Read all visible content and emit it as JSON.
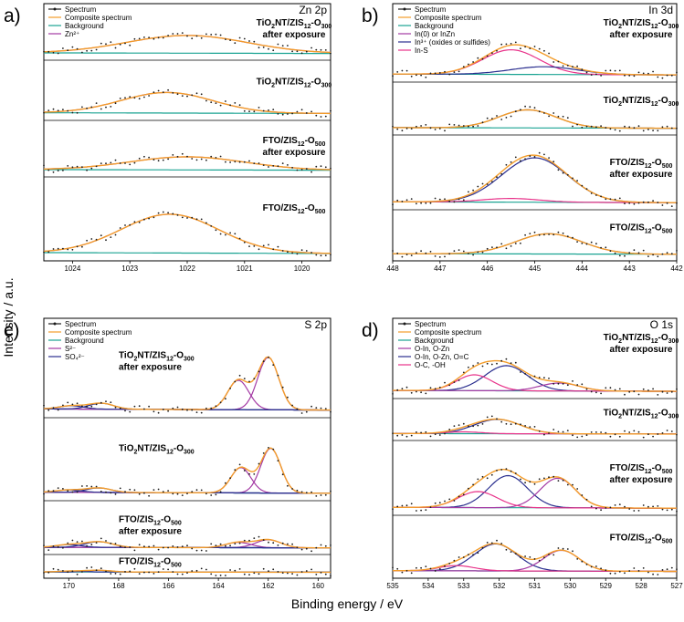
{
  "figure": {
    "xlabel": "Binding energy / eV",
    "ylabel": "Intensity / a.u."
  },
  "chart_data": [
    {
      "type": "line",
      "panel": "a)",
      "title": "Zn 2p",
      "xlim": [
        1024.5,
        1019.5
      ],
      "x_ticks": [
        "1024",
        "1023",
        "1022",
        "1021",
        "1020"
      ],
      "legend": [
        "Spectrum",
        "Composite spectrum",
        "Background",
        "Zn²⁺"
      ],
      "colors": {
        "spectrum": "#1a1a1a",
        "composite": "#f39c2a",
        "background": "#1aa392",
        "c1": "#a43aa4"
      },
      "offsets": [
        {
          "sample": [
            "TiO",
            "2",
            "NT/ZIS",
            "12",
            "-O",
            "300"
          ],
          "line2": "after exposure",
          "components": [
            {
              "center": 1022.0,
              "amp": 0.95,
              "sigma": 1.05
            }
          ]
        },
        {
          "sample": [
            "TiO",
            "2",
            "NT/ZIS",
            "12",
            "-O",
            "300"
          ],
          "line2": "",
          "components": [
            {
              "center": 1022.35,
              "amp": 0.95,
              "sigma": 0.8
            }
          ]
        },
        {
          "sample": [
            "FTO/ZIS",
            "12",
            "-O",
            "500"
          ],
          "line2": "after exposure",
          "components": [
            {
              "center": 1022.0,
              "amp": 0.7,
              "sigma": 1.0
            }
          ]
        },
        {
          "sample": [
            "FTO/ZIS",
            "12",
            "-O",
            "500"
          ],
          "line2": "",
          "components": [
            {
              "center": 1022.3,
              "amp": 1.4,
              "sigma": 0.85
            }
          ]
        }
      ]
    },
    {
      "type": "line",
      "panel": "b)",
      "title": "In 3d",
      "xlim": [
        448,
        442
      ],
      "x_ticks": [
        "448",
        "447",
        "446",
        "445",
        "444",
        "443",
        "442"
      ],
      "legend": [
        "Spectrum",
        "Composite spectrum",
        "Background",
        "In(0) or InZn",
        "In³⁺ (oxides or sulfides)",
        "In-S"
      ],
      "colors": {
        "spectrum": "#1a1a1a",
        "composite": "#f39c2a",
        "background": "#1aa392",
        "c1": "#a43aa4",
        "c2": "#2b2f8f",
        "c3": "#e8338a"
      },
      "offsets": [
        {
          "sample": [
            "TiO",
            "2",
            "NT/ZIS",
            "12",
            "-O",
            "300"
          ],
          "line2": "after exposure",
          "components": [
            {
              "center": 445.5,
              "amp": 0.95,
              "sigma": 0.6,
              "color": "c3"
            },
            {
              "center": 444.8,
              "amp": 0.3,
              "sigma": 0.7,
              "color": "c2"
            }
          ]
        },
        {
          "sample": [
            "TiO",
            "2",
            "NT/ZIS",
            "12",
            "-O",
            "300"
          ],
          "line2": "",
          "components": [
            {
              "center": 445.15,
              "amp": 0.95,
              "sigma": 0.6,
              "color": "c2"
            }
          ]
        },
        {
          "sample": [
            "FTO/ZIS",
            "12",
            "-O",
            "500"
          ],
          "line2": "after exposure",
          "components": [
            {
              "center": 445.0,
              "amp": 1.8,
              "sigma": 0.7,
              "color": "c2"
            },
            {
              "center": 445.5,
              "amp": 0.15,
              "sigma": 0.6,
              "color": "c3"
            }
          ]
        },
        {
          "sample": [
            "FTO/ZIS",
            "12",
            "-O",
            "500"
          ],
          "line2": "",
          "components": [
            {
              "center": 444.7,
              "amp": 1.2,
              "sigma": 0.7,
              "color": "c2"
            }
          ]
        }
      ]
    },
    {
      "type": "line",
      "panel": "c)",
      "title": "S 2p",
      "xlim": [
        171,
        159.5
      ],
      "x_ticks": [
        "170",
        "168",
        "166",
        "164",
        "162",
        "160"
      ],
      "legend": [
        "Spectrum",
        "Composite spectrum",
        "Background",
        "S²⁻",
        "SO₄²⁻"
      ],
      "colors": {
        "spectrum": "#1a1a1a",
        "composite": "#f39c2a",
        "background": "#1aa392",
        "c1": "#a43aa4",
        "c2": "#2b2f8f"
      },
      "offsets": [
        {
          "sample": [
            "TiO",
            "2",
            "NT/ZIS",
            "12",
            "-O",
            "300"
          ],
          "line2": "after exposure",
          "components": [
            {
              "center": 162.0,
              "amp": 1.6,
              "sigma": 0.42,
              "color": "c1"
            },
            {
              "center": 163.2,
              "amp": 0.9,
              "sigma": 0.42,
              "color": "c1"
            },
            {
              "center": 168.7,
              "amp": 0.18,
              "sigma": 0.5,
              "color": "c2"
            },
            {
              "center": 169.9,
              "amp": 0.1,
              "sigma": 0.5,
              "color": "c2"
            }
          ]
        },
        {
          "sample": [
            "TiO",
            "2",
            "NT/ZIS",
            "12",
            "-O",
            "300"
          ],
          "line2": "",
          "components": [
            {
              "center": 161.9,
              "amp": 1.5,
              "sigma": 0.4,
              "color": "c1"
            },
            {
              "center": 163.1,
              "amp": 0.85,
              "sigma": 0.4,
              "color": "c1"
            },
            {
              "center": 168.8,
              "amp": 0.15,
              "sigma": 0.5,
              "color": "c2"
            },
            {
              "center": 170.0,
              "amp": 0.08,
              "sigma": 0.5,
              "color": "c2"
            }
          ]
        },
        {
          "sample": [
            "FTO/ZIS",
            "12",
            "-O",
            "500"
          ],
          "line2": "after exposure",
          "components": [
            {
              "center": 162.0,
              "amp": 0.45,
              "sigma": 0.5,
              "color": "c1"
            },
            {
              "center": 163.2,
              "amp": 0.3,
              "sigma": 0.5,
              "color": "c1"
            },
            {
              "center": 168.8,
              "amp": 0.32,
              "sigma": 0.55,
              "color": "c2"
            },
            {
              "center": 170.0,
              "amp": 0.15,
              "sigma": 0.5,
              "color": "c2"
            }
          ]
        },
        {
          "sample": [
            "FTO/ZIS",
            "12",
            "-O",
            "500"
          ],
          "line2": "",
          "components": [
            {
              "center": 168.8,
              "amp": 0.22,
              "sigma": 0.5,
              "color": "c2"
            },
            {
              "center": 169.9,
              "amp": 0.12,
              "sigma": 0.5,
              "color": "c2"
            }
          ]
        }
      ]
    },
    {
      "type": "line",
      "panel": "d)",
      "title": "O 1s",
      "xlim": [
        535,
        527
      ],
      "x_ticks": [
        "535",
        "534",
        "533",
        "532",
        "531",
        "530",
        "529",
        "528",
        "527"
      ],
      "legend": [
        "Spectrum",
        "Composite spectrum",
        "Background",
        "O-In, O-Zn",
        "O-In, O-Zn, O=C",
        "O-C, -OH"
      ],
      "colors": {
        "spectrum": "#1a1a1a",
        "composite": "#f39c2a",
        "background": "#1aa392",
        "c1": "#a43aa4",
        "c2": "#2b2f8f",
        "c3": "#e8338a"
      },
      "offsets": [
        {
          "sample": [
            "TiO",
            "2",
            "NT/ZIS",
            "12",
            "-O",
            "300"
          ],
          "line2": "after exposure",
          "components": [
            {
              "center": 531.8,
              "amp": 0.95,
              "sigma": 0.6,
              "color": "c2"
            },
            {
              "center": 532.7,
              "amp": 0.6,
              "sigma": 0.5,
              "color": "c3"
            },
            {
              "center": 530.3,
              "amp": 0.3,
              "sigma": 0.55,
              "color": "c1"
            }
          ]
        },
        {
          "sample": [
            "TiO",
            "2",
            "NT/ZIS",
            "12",
            "-O",
            "300"
          ],
          "line2": "",
          "components": [
            {
              "center": 532.05,
              "amp": 0.95,
              "sigma": 0.65,
              "color": "c2"
            },
            {
              "center": 533.0,
              "amp": 0.12,
              "sigma": 0.5,
              "color": "c3"
            }
          ]
        },
        {
          "sample": [
            "FTO/ZIS",
            "12",
            "-O",
            "500"
          ],
          "line2": "after exposure",
          "components": [
            {
              "center": 531.75,
              "amp": 1.3,
              "sigma": 0.55,
              "color": "c2"
            },
            {
              "center": 530.35,
              "amp": 1.2,
              "sigma": 0.5,
              "color": "c1"
            },
            {
              "center": 532.6,
              "amp": 0.65,
              "sigma": 0.55,
              "color": "c3"
            }
          ]
        },
        {
          "sample": [
            "FTO/ZIS",
            "12",
            "-O",
            "500"
          ],
          "line2": "",
          "components": [
            {
              "center": 532.1,
              "amp": 1.3,
              "sigma": 0.6,
              "color": "c2"
            },
            {
              "center": 530.25,
              "amp": 1.0,
              "sigma": 0.5,
              "color": "c1"
            },
            {
              "center": 533.2,
              "amp": 0.25,
              "sigma": 0.5,
              "color": "c3"
            }
          ]
        }
      ]
    }
  ]
}
